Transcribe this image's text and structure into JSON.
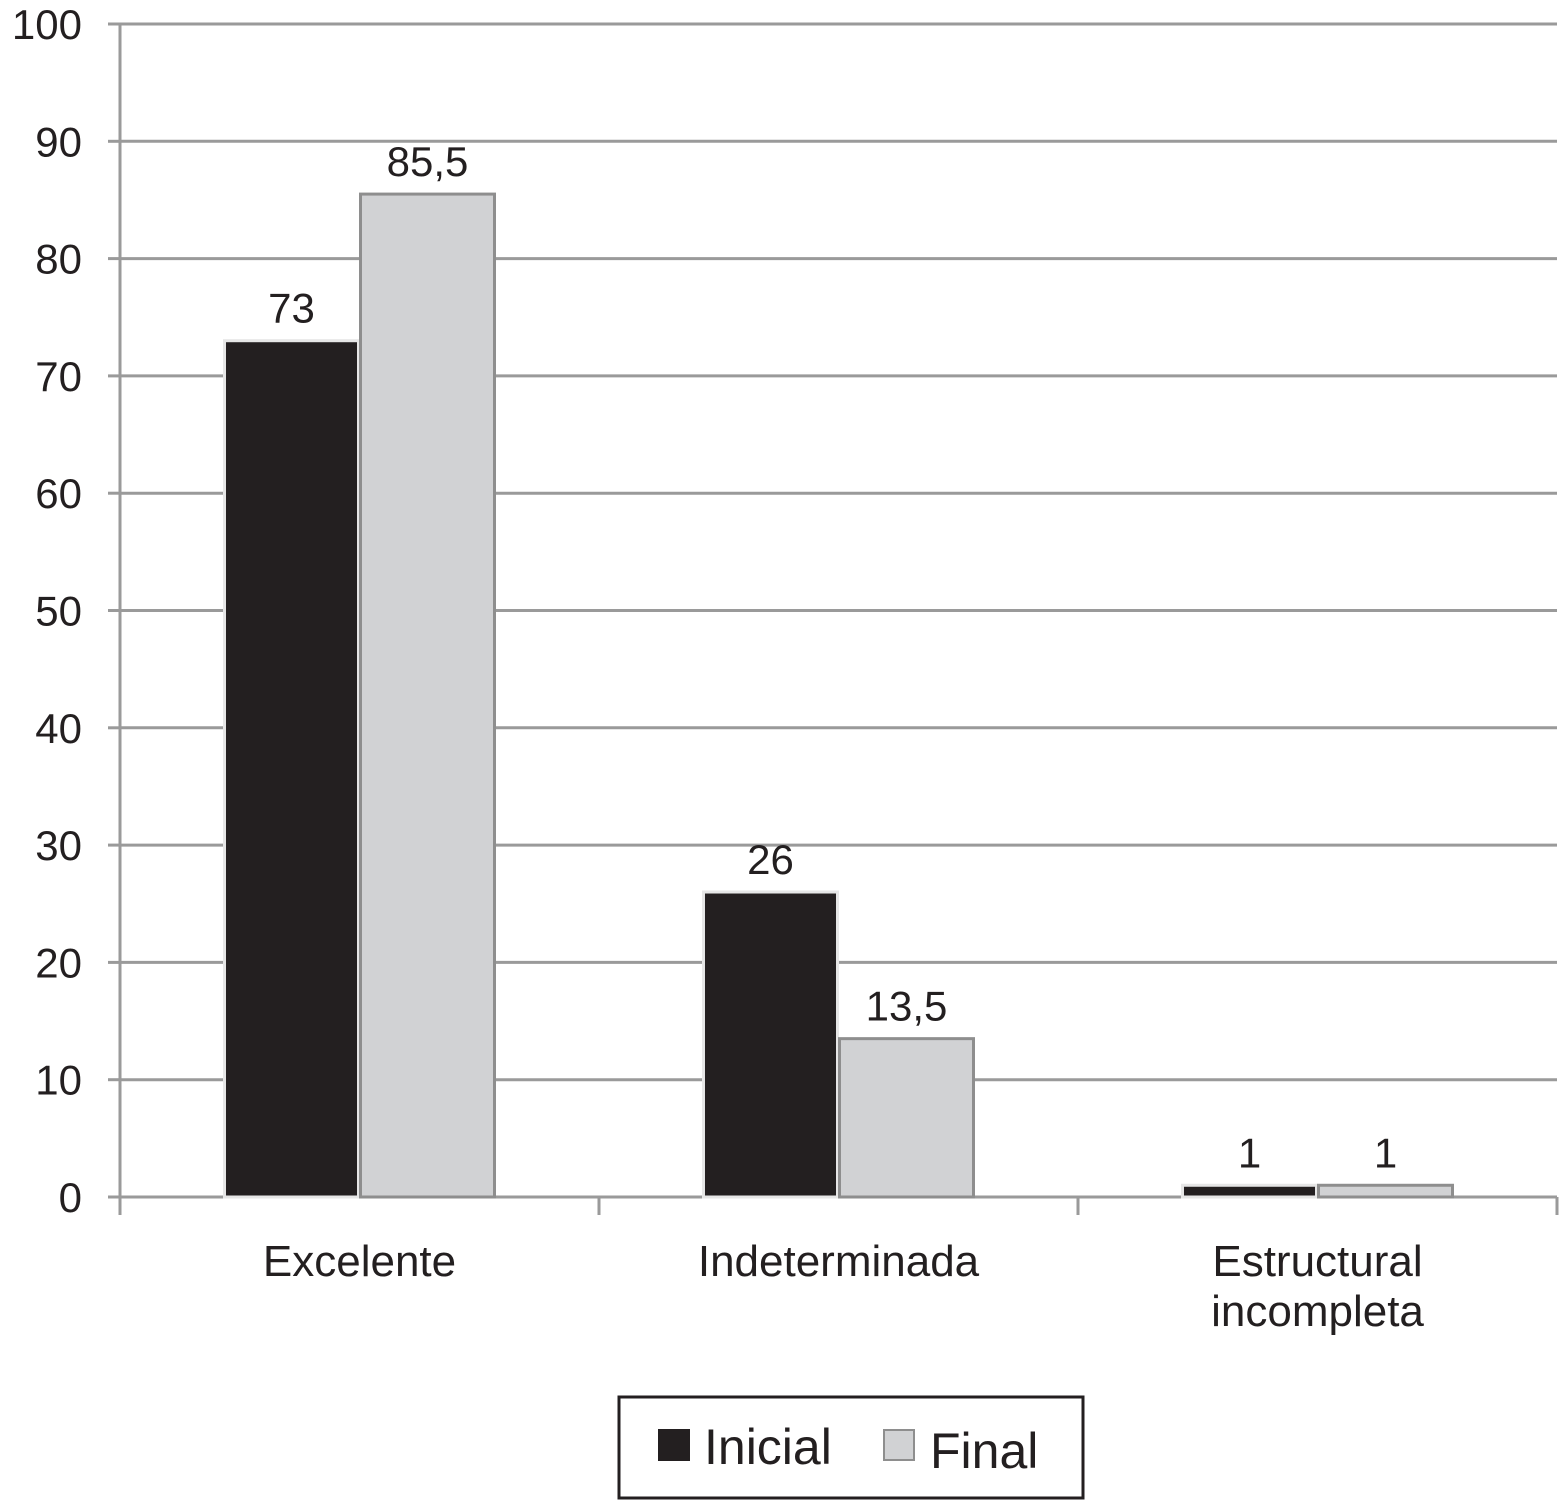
{
  "chart_data": {
    "type": "bar",
    "categories": [
      "Excelente",
      "Indeterminada",
      "Estructural incompleta"
    ],
    "category_label_lines": [
      [
        "Excelente"
      ],
      [
        "Indeterminada"
      ],
      [
        "Estructural",
        "incompleta"
      ]
    ],
    "series": [
      {
        "name": "Inicial",
        "values": [
          73,
          26,
          1
        ],
        "value_labels": [
          "73",
          "26",
          "1"
        ],
        "color": "#231f20"
      },
      {
        "name": "Final",
        "values": [
          85.5,
          13.5,
          1
        ],
        "value_labels": [
          "85,5",
          "13,5",
          "1"
        ],
        "color": "#d1d2d4"
      }
    ],
    "ylim": [
      0,
      100
    ],
    "yticks": [
      0,
      10,
      20,
      30,
      40,
      50,
      60,
      70,
      80,
      90,
      100
    ],
    "grid": true,
    "legend": "bottom-center",
    "gridline_color": "#9a9a9a",
    "xlabel": "",
    "ylabel": "",
    "title": ""
  }
}
